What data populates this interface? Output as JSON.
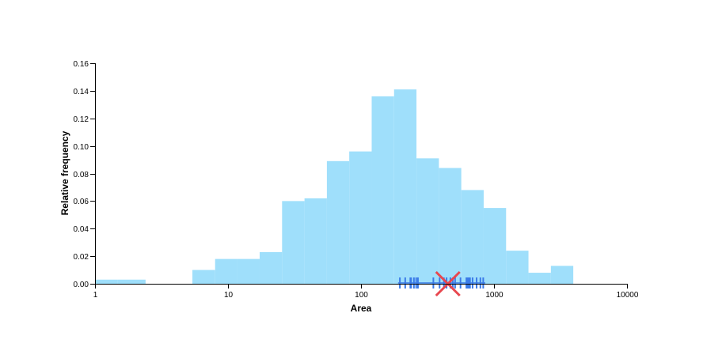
{
  "chart_data": {
    "type": "bar",
    "title": "",
    "xlabel": "Area",
    "ylabel": "Relative frequency",
    "xscale": "log",
    "xlim": [
      1,
      10000
    ],
    "ylim": [
      0,
      0.16
    ],
    "x_ticks": [
      "1",
      "10",
      "100",
      "1000",
      "10000"
    ],
    "y_ticks": [
      "0.00",
      "0.02",
      "0.04",
      "0.06",
      "0.08",
      "0.10",
      "0.12",
      "0.14",
      "0.16"
    ],
    "grid": false,
    "legend": "none",
    "bar_color": "#9fdffb",
    "bins": [
      {
        "x0": 1.0,
        "x1": 1.48,
        "value": 0.003
      },
      {
        "x0": 1.48,
        "x1": 2.4,
        "value": 0.003
      },
      {
        "x0": 5.4,
        "x1": 8.0,
        "value": 0.01
      },
      {
        "x0": 8.0,
        "x1": 11.7,
        "value": 0.018
      },
      {
        "x0": 11.7,
        "x1": 17.3,
        "value": 0.018
      },
      {
        "x0": 17.3,
        "x1": 25.5,
        "value": 0.023
      },
      {
        "x0": 25.5,
        "x1": 37.6,
        "value": 0.06
      },
      {
        "x0": 37.6,
        "x1": 55.4,
        "value": 0.062
      },
      {
        "x0": 55.4,
        "x1": 81.6,
        "value": 0.089
      },
      {
        "x0": 81.6,
        "x1": 120.3,
        "value": 0.096
      },
      {
        "x0": 120.3,
        "x1": 177.3,
        "value": 0.136
      },
      {
        "x0": 177.3,
        "x1": 261.3,
        "value": 0.141
      },
      {
        "x0": 261.3,
        "x1": 385.1,
        "value": 0.091
      },
      {
        "x0": 385.1,
        "x1": 567.5,
        "value": 0.084
      },
      {
        "x0": 567.5,
        "x1": 836.3,
        "value": 0.068
      },
      {
        "x0": 836.3,
        "x1": 1232.6,
        "value": 0.055
      },
      {
        "x0": 1232.6,
        "x1": 1816.5,
        "value": 0.024
      },
      {
        "x0": 1816.5,
        "x1": 2677.0,
        "value": 0.008
      },
      {
        "x0": 2677.0,
        "x1": 3945.3,
        "value": 0.013
      }
    ],
    "rug": {
      "color": "#3b7be8",
      "x": [
        196,
        215,
        235,
        238,
        250,
        260,
        268,
        350,
        390,
        420,
        440,
        470,
        490,
        510,
        560,
        620,
        635,
        648,
        660,
        690,
        740,
        790,
        830
      ],
      "range": [
        190,
        860
      ]
    },
    "marker": {
      "type": "x",
      "x": 450,
      "color": "#e8474f"
    }
  }
}
